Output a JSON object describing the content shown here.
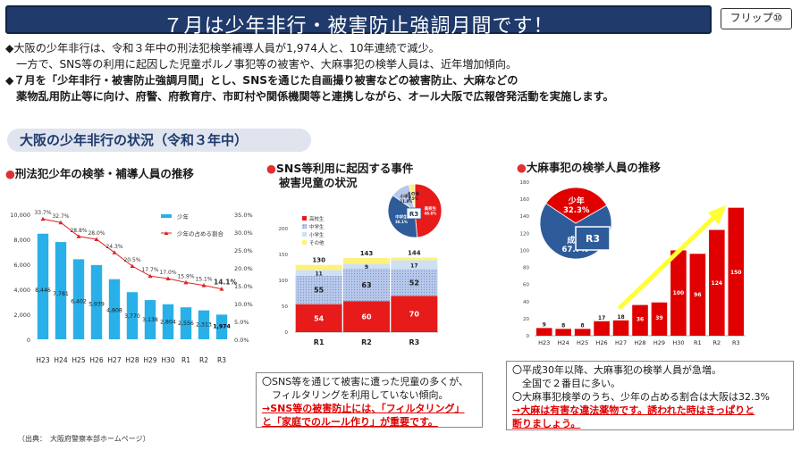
{
  "header": {
    "title": "７月は少年非行・被害防止強調月間です！",
    "flip_label": "フリップ⑩"
  },
  "intro": {
    "line1": "◆大阪の少年非行は、令和３年中の刑法犯検挙補導人員が1,974人と、10年連続で減少。",
    "line2": "　一方で、SNS等の利用に起因した児童ポルノ事犯等の被害や、大麻事犯の検挙人員は、近年増加傾向。",
    "line3": "◆７月を「少年非行・被害防止強調月間」とし、SNSを通じた自画撮り被害などの被害防止、大麻などの",
    "line4": "　薬物乱用防止等に向け、府警、府教育庁、市町村や関係機関等と連携しながら、オール大阪で広報啓発活動を実施します。"
  },
  "section_title": "大阪の少年非行の状況（令和３年中）",
  "panels": {
    "left_title": "刑法犯少年の検挙・補導人員の推移",
    "mid_title_1": "SNS等利用に起因する事件",
    "mid_title_2": "被害児童の状況",
    "right_title": "大麻事犯の検挙人員の推移"
  },
  "notes": {
    "mid_1": "〇SNS等を通じて被害に遭った児童の多くが、",
    "mid_2": "　フィルタリングを利用していない傾向。",
    "mid_3": "→SNS等の被害防止には、「フィルタリング」",
    "mid_4": "と「家庭でのルール作り」が重要です。",
    "right_1": "〇平成30年以降、大麻事犯の検挙人員が急増。",
    "right_2": "　全国で２番目に多い。",
    "right_3": "〇大麻事犯検挙のうち、少年の占める割合は大阪は32.3%",
    "right_4": "→大麻は有害な違法薬物です。誘われた時はきっぱりと",
    "right_5": "断りましょう。"
  },
  "source": "（出典：　大阪府警察本部ホームページ）",
  "colors": {
    "navy": "#1f3a6b",
    "cyan": "#29b0e8",
    "red": "#e02020",
    "darkred": "#c00000",
    "blue": "#2e5c9a",
    "yellow": "#ffff33"
  },
  "chart_data": [
    {
      "type": "bar",
      "title": "刑法犯少年の検挙・補導人員の推移",
      "categories": [
        "H23",
        "H24",
        "H25",
        "H26",
        "H27",
        "H28",
        "H29",
        "H30",
        "R1",
        "R2",
        "R3"
      ],
      "series": [
        {
          "name": "少年",
          "values": [
            8446,
            7781,
            6402,
            5939,
            4808,
            3770,
            3138,
            2804,
            2556,
            2313,
            1974
          ]
        },
        {
          "name": "少年の占める割合",
          "values": [
            33.7,
            32.7,
            28.8,
            28.0,
            24.3,
            20.5,
            17.7,
            17.0,
            15.9,
            15.1,
            14.1
          ]
        }
      ],
      "value_labels": [
        "8,446",
        "7,781",
        "6,402",
        "5,939",
        "4,808",
        "3,770",
        "3,138",
        "2,804",
        "2,556",
        "2,313",
        "1,974"
      ],
      "ratio_labels": [
        "33.7%",
        "32.7%",
        "28.8%",
        "28.0%",
        "24.3%",
        "20.5%",
        "17.7%",
        "17.0%",
        "15.9%",
        "15.1%",
        "14.1%"
      ],
      "y_ticks": [
        "0",
        "2,000",
        "4,000",
        "6,000",
        "8,000",
        "10,000"
      ],
      "y2_ticks": [
        "0.0%",
        "5.0%",
        "10.0%",
        "15.0%",
        "20.0%",
        "25.0%",
        "30.0%",
        "35.0%"
      ],
      "ylim": [
        0,
        10000
      ],
      "y2lim": [
        0,
        35
      ],
      "legend_position": "top-right"
    },
    {
      "type": "bar",
      "title": "SNS等利用に起因する事件 被害児童の状況",
      "categories": [
        "R1",
        "R2",
        "R3"
      ],
      "series": [
        {
          "name": "高校生",
          "values": [
            54,
            60,
            70
          ]
        },
        {
          "name": "中学生",
          "values": [
            55,
            63,
            52
          ]
        },
        {
          "name": "小学生",
          "values": [
            11,
            9,
            17
          ]
        },
        {
          "name": "その他",
          "values": [
            10,
            11,
            5
          ]
        }
      ],
      "totals": [
        130,
        143,
        144
      ],
      "y_ticks": [
        "0",
        "50",
        "100",
        "150",
        "200"
      ],
      "ylim": [
        0,
        200
      ],
      "legend_position": "top-left"
    },
    {
      "type": "pie",
      "title": "R3",
      "labels": [
        "高校生",
        "中学生",
        "小学生",
        "その他"
      ],
      "values": [
        48.6,
        36.1,
        11.8,
        3.5
      ],
      "value_labels": [
        "48.6%",
        "36.1%",
        "11.8%",
        "3.5%"
      ]
    },
    {
      "type": "bar",
      "title": "大麻事犯の検挙人員の推移",
      "categories": [
        "H23",
        "H24",
        "H25",
        "H26",
        "H27",
        "H28",
        "H29",
        "H30",
        "R1",
        "R2",
        "R3"
      ],
      "values": [
        9,
        8,
        8,
        17,
        18,
        36,
        39,
        100,
        96,
        124,
        150
      ],
      "y_ticks": [
        "0",
        "20",
        "40",
        "60",
        "80",
        "100",
        "120",
        "140",
        "160",
        "180"
      ],
      "ylim": [
        0,
        180
      ]
    },
    {
      "type": "pie",
      "title": "R3",
      "labels": [
        "成人",
        "少年"
      ],
      "values": [
        67.7,
        32.3
      ],
      "value_labels": [
        "67.7%",
        "32.3%"
      ]
    }
  ]
}
